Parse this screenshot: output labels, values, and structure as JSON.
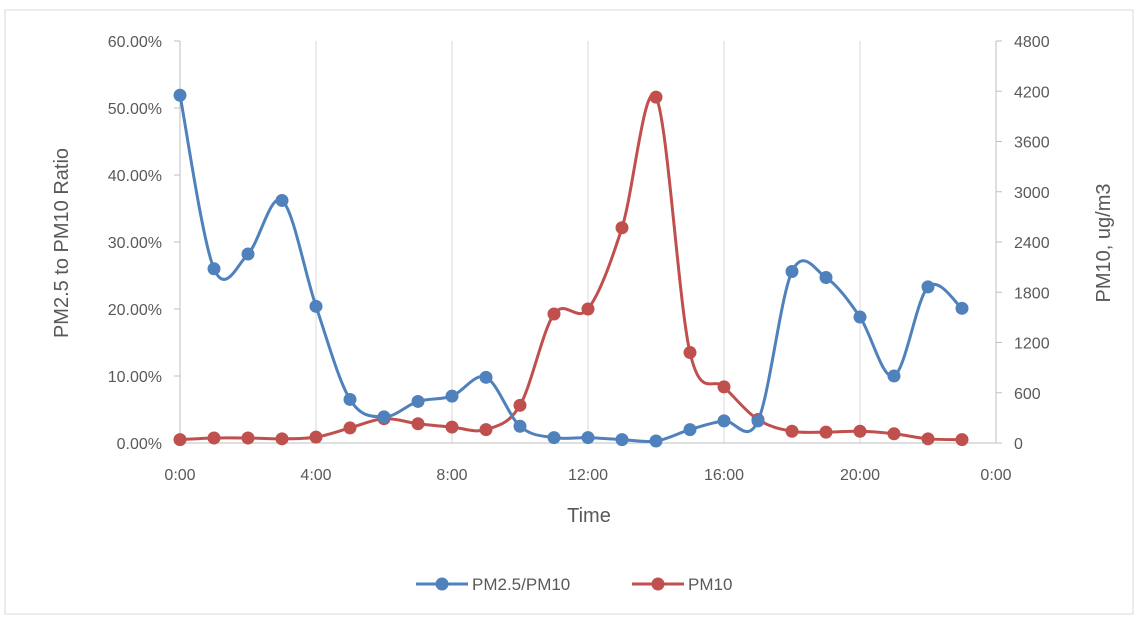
{
  "chart_data": {
    "type": "line",
    "smooth": true,
    "xlabel": "Time",
    "ylabel_left": "PM2.5 to PM10 Ratio",
    "ylabel_right": "PM10, ug/m3",
    "x_hours": [
      0,
      1,
      2,
      3,
      4,
      5,
      6,
      7,
      8,
      9,
      10,
      11,
      12,
      13,
      14,
      15,
      16,
      17,
      18,
      19,
      20,
      21,
      22,
      23
    ],
    "x_range_hours": [
      0,
      24
    ],
    "x_ticks": [
      {
        "hour": 0,
        "label": "0:00"
      },
      {
        "hour": 4,
        "label": "4:00"
      },
      {
        "hour": 8,
        "label": "8:00"
      },
      {
        "hour": 12,
        "label": "12:00"
      },
      {
        "hour": 16,
        "label": "16:00"
      },
      {
        "hour": 20,
        "label": "20:00"
      },
      {
        "hour": 24,
        "label": "0:00"
      }
    ],
    "ylim_left": [
      0,
      60
    ],
    "ylim_right": [
      0,
      4800
    ],
    "left_ticks": [
      "0.00%",
      "10.00%",
      "20.00%",
      "30.00%",
      "40.00%",
      "50.00%",
      "60.00%"
    ],
    "left_tick_values": [
      0,
      10,
      20,
      30,
      40,
      50,
      60
    ],
    "right_ticks": [
      "0",
      "600",
      "1200",
      "1800",
      "2400",
      "3000",
      "3600",
      "4200",
      "4800"
    ],
    "right_tick_values": [
      0,
      600,
      1200,
      1800,
      2400,
      3000,
      3600,
      4200,
      4800
    ],
    "grid": "vertical",
    "legend_position": "bottom",
    "series": [
      {
        "name": "PM2.5/PM10",
        "axis": "left",
        "color": "#4F81BD",
        "values": [
          51.9,
          26.0,
          28.2,
          36.2,
          20.4,
          6.5,
          3.9,
          6.2,
          7.0,
          9.8,
          2.5,
          0.8,
          0.8,
          0.5,
          0.3,
          2.0,
          3.3,
          3.3,
          25.6,
          24.7,
          18.8,
          10.0,
          23.3,
          20.1
        ]
      },
      {
        "name": "PM10",
        "axis": "right",
        "color": "#C0504D",
        "values": [
          40,
          60,
          60,
          50,
          70,
          180,
          290,
          230,
          190,
          160,
          450,
          1540,
          1600,
          2570,
          4130,
          1080,
          670,
          280,
          140,
          130,
          140,
          110,
          50,
          40
        ]
      }
    ]
  }
}
